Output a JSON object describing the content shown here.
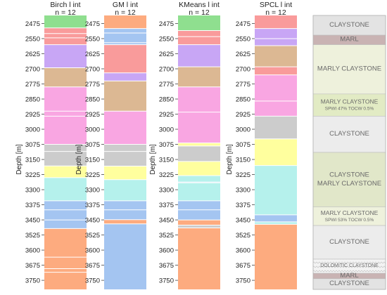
{
  "chart_data": {
    "type": "clustering-log",
    "ylabel": "Depth [m]",
    "yticks": [
      2475,
      2550,
      2625,
      2700,
      2775,
      2850,
      2925,
      3000,
      3075,
      3150,
      3225,
      3300,
      3375,
      3450,
      3525,
      3600,
      3675,
      3750
    ],
    "ylim": [
      2435,
      3795
    ],
    "colors": {
      "green": "#8fdf8f",
      "orange": "#fdab7f",
      "blue": "#a4c5f1",
      "red": "#f99b9b",
      "purple": "#c8a6f5",
      "tan": "#dcb893",
      "pink": "#f9a6e2",
      "gray": "#cccccc",
      "yellow": "#ffff9e",
      "cyan": "#b5f1ec"
    },
    "columns": [
      {
        "title": "Birch l int",
        "n": "n = 12",
        "segments": [
          {
            "top": 2435,
            "bottom": 2497,
            "color": "green"
          },
          {
            "top": 2497,
            "bottom": 2525,
            "color": "red"
          },
          {
            "top": 2525,
            "bottom": 2546,
            "color": "red"
          },
          {
            "top": 2546,
            "bottom": 2580,
            "color": "red"
          },
          {
            "top": 2580,
            "bottom": 2695,
            "color": "purple"
          },
          {
            "top": 2695,
            "bottom": 2790,
            "color": "tan"
          },
          {
            "top": 2790,
            "bottom": 2910,
            "color": "pink"
          },
          {
            "top": 2910,
            "bottom": 2935,
            "color": "pink"
          },
          {
            "top": 2935,
            "bottom": 3075,
            "color": "pink"
          },
          {
            "top": 3075,
            "bottom": 3110,
            "color": "gray"
          },
          {
            "top": 3110,
            "bottom": 3182,
            "color": "gray"
          },
          {
            "top": 3182,
            "bottom": 3240,
            "color": "yellow"
          },
          {
            "top": 3240,
            "bottom": 3355,
            "color": "cyan"
          },
          {
            "top": 3355,
            "bottom": 3400,
            "color": "blue"
          },
          {
            "top": 3400,
            "bottom": 3450,
            "color": "blue"
          },
          {
            "top": 3450,
            "bottom": 3493,
            "color": "blue"
          },
          {
            "top": 3493,
            "bottom": 3635,
            "color": "orange"
          },
          {
            "top": 3635,
            "bottom": 3692,
            "color": "orange"
          },
          {
            "top": 3692,
            "bottom": 3710,
            "color": "orange"
          },
          {
            "top": 3710,
            "bottom": 3795,
            "color": "orange"
          }
        ]
      },
      {
        "title": "GM l int",
        "n": "n = 12",
        "segments": [
          {
            "top": 2435,
            "bottom": 2500,
            "color": "orange"
          },
          {
            "top": 2500,
            "bottom": 2522,
            "color": "blue"
          },
          {
            "top": 2522,
            "bottom": 2570,
            "color": "blue"
          },
          {
            "top": 2570,
            "bottom": 2580,
            "color": "blue"
          },
          {
            "top": 2580,
            "bottom": 2720,
            "color": "red"
          },
          {
            "top": 2720,
            "bottom": 2760,
            "color": "purple"
          },
          {
            "top": 2760,
            "bottom": 2910,
            "color": "tan"
          },
          {
            "top": 2910,
            "bottom": 3075,
            "color": "pink"
          },
          {
            "top": 3075,
            "bottom": 3110,
            "color": "gray"
          },
          {
            "top": 3110,
            "bottom": 3183,
            "color": "gray"
          },
          {
            "top": 3183,
            "bottom": 3250,
            "color": "yellow"
          },
          {
            "top": 3250,
            "bottom": 3355,
            "color": "cyan"
          },
          {
            "top": 3355,
            "bottom": 3400,
            "color": "blue"
          },
          {
            "top": 3400,
            "bottom": 3449,
            "color": "blue"
          },
          {
            "top": 3449,
            "bottom": 3470,
            "color": "orange"
          },
          {
            "top": 3470,
            "bottom": 3795,
            "color": "blue"
          }
        ]
      },
      {
        "title": "KMeans l int",
        "n": "n = 12",
        "segments": [
          {
            "top": 2435,
            "bottom": 2510,
            "color": "green"
          },
          {
            "top": 2510,
            "bottom": 2540,
            "color": "red"
          },
          {
            "top": 2540,
            "bottom": 2580,
            "color": "red"
          },
          {
            "top": 2580,
            "bottom": 2690,
            "color": "purple"
          },
          {
            "top": 2690,
            "bottom": 2790,
            "color": "tan"
          },
          {
            "top": 2790,
            "bottom": 2915,
            "color": "pink"
          },
          {
            "top": 2915,
            "bottom": 3068,
            "color": "pink"
          },
          {
            "top": 3068,
            "bottom": 3083,
            "color": "yellow"
          },
          {
            "top": 3083,
            "bottom": 3160,
            "color": "gray"
          },
          {
            "top": 3160,
            "bottom": 3230,
            "color": "yellow"
          },
          {
            "top": 3230,
            "bottom": 3262,
            "color": "cyan"
          },
          {
            "top": 3262,
            "bottom": 3266,
            "color": "blue"
          },
          {
            "top": 3266,
            "bottom": 3355,
            "color": "cyan"
          },
          {
            "top": 3355,
            "bottom": 3400,
            "color": "blue"
          },
          {
            "top": 3400,
            "bottom": 3450,
            "color": "blue"
          },
          {
            "top": 3450,
            "bottom": 3476,
            "color": "orange"
          },
          {
            "top": 3476,
            "bottom": 3490,
            "color": "gray"
          },
          {
            "top": 3490,
            "bottom": 3795,
            "color": "orange"
          }
        ]
      },
      {
        "title": "SPCL l int",
        "n": "n = 12",
        "segments": [
          {
            "top": 2435,
            "bottom": 2500,
            "color": "red"
          },
          {
            "top": 2500,
            "bottom": 2550,
            "color": "purple"
          },
          {
            "top": 2550,
            "bottom": 2585,
            "color": "purple"
          },
          {
            "top": 2585,
            "bottom": 2690,
            "color": "tan"
          },
          {
            "top": 2690,
            "bottom": 2730,
            "color": "red"
          },
          {
            "top": 2730,
            "bottom": 2860,
            "color": "pink"
          },
          {
            "top": 2860,
            "bottom": 2935,
            "color": "pink"
          },
          {
            "top": 2935,
            "bottom": 3048,
            "color": "gray"
          },
          {
            "top": 3048,
            "bottom": 3180,
            "color": "yellow"
          },
          {
            "top": 3180,
            "bottom": 3425,
            "color": "cyan"
          },
          {
            "top": 3425,
            "bottom": 3460,
            "color": "blue"
          },
          {
            "top": 3460,
            "bottom": 3472,
            "color": "cyan"
          },
          {
            "top": 3472,
            "bottom": 3795,
            "color": "orange"
          }
        ]
      }
    ],
    "lithology": [
      {
        "top": 2435,
        "bottom": 2533,
        "label": "CLAYSTONE",
        "sub": "",
        "fill": "#e3e3e3"
      },
      {
        "top": 2533,
        "bottom": 2580,
        "label": "MARL",
        "sub": "",
        "fill": "#c9b3b3"
      },
      {
        "top": 2580,
        "bottom": 2825,
        "label": "MARLY CLAYSTONE",
        "sub": "",
        "fill": "#eef1dc"
      },
      {
        "top": 2825,
        "bottom": 2935,
        "label": "MARLY CLAYSTONE",
        "sub": "SPWI 47% TOCW 0.5%",
        "fill": "#e2ebc4"
      },
      {
        "top": 2935,
        "bottom": 3115,
        "label": "CLAYSTONE",
        "sub": "",
        "fill": "#ececec"
      },
      {
        "top": 3115,
        "bottom": 3385,
        "label": "CLAYSTONE\nMARLY CLAYSTONE",
        "sub": "",
        "fill": "#e1e7c9"
      },
      {
        "top": 3385,
        "bottom": 3478,
        "label": "MARLY CLAYSTONE",
        "sub": "SPWI 53% TOCW 0.5%",
        "fill": "#eef1dc"
      },
      {
        "top": 3478,
        "bottom": 3645,
        "label": "CLAYSTONE",
        "sub": "",
        "fill": "#ececec"
      },
      {
        "top": 3645,
        "bottom": 3715,
        "label": "DOLOMITIC CLAYSTONE",
        "sub": "",
        "fill": "#f1f1f1"
      },
      {
        "top": 3715,
        "bottom": 3742,
        "label": "MARL",
        "sub": "",
        "fill": "#c9b3b3"
      },
      {
        "top": 3742,
        "bottom": 3795,
        "label": "CLAYSTONE",
        "sub": "",
        "fill": "#e3e3e3"
      }
    ]
  }
}
